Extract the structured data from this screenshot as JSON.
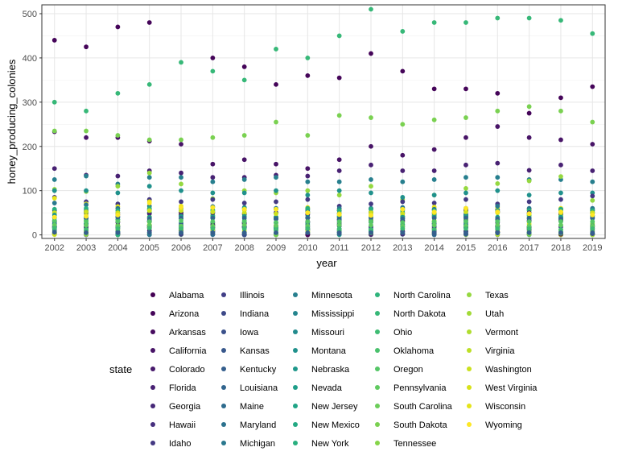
{
  "chart_data": {
    "type": "scatter",
    "title": "",
    "xlabel": "year",
    "ylabel": "honey_producing_colonies",
    "x_ticks": [
      2002,
      2003,
      2004,
      2005,
      2006,
      2007,
      2008,
      2009,
      2010,
      2011,
      2012,
      2013,
      2014,
      2015,
      2016,
      2017,
      2018,
      2019
    ],
    "y_ticks": [
      0,
      100,
      200,
      300,
      400,
      500
    ],
    "xlim": [
      2001.6,
      2019.4
    ],
    "ylim": [
      -8,
      520
    ],
    "grid": true,
    "legend_title": "state",
    "legend_position": "bottom",
    "color_scale": "viridis",
    "legend_entries": [
      {
        "name": "Alabama",
        "color": "#440154"
      },
      {
        "name": "Arizona",
        "color": "#450559"
      },
      {
        "name": "Arkansas",
        "color": "#470C5F"
      },
      {
        "name": "California",
        "color": "#481467"
      },
      {
        "name": "Colorado",
        "color": "#481A6C"
      },
      {
        "name": "Florida",
        "color": "#482173"
      },
      {
        "name": "Georgia",
        "color": "#472878"
      },
      {
        "name": "Hawaii",
        "color": "#462F7E"
      },
      {
        "name": "Idaho",
        "color": "#443983"
      },
      {
        "name": "Illinois",
        "color": "#413E86"
      },
      {
        "name": "Indiana",
        "color": "#3E4A89"
      },
      {
        "name": "Iowa",
        "color": "#3B518B"
      },
      {
        "name": "Kansas",
        "color": "#38588C"
      },
      {
        "name": "Kentucky",
        "color": "#355F8D"
      },
      {
        "name": "Louisiana",
        "color": "#32658E"
      },
      {
        "name": "Maine",
        "color": "#2F6C8E"
      },
      {
        "name": "Maryland",
        "color": "#2C728E"
      },
      {
        "name": "Michigan",
        "color": "#2A788E"
      },
      {
        "name": "Minnesota",
        "color": "#277F8E"
      },
      {
        "name": "Mississippi",
        "color": "#25858E"
      },
      {
        "name": "Missouri",
        "color": "#228B8D"
      },
      {
        "name": "Montana",
        "color": "#20918C"
      },
      {
        "name": "Nebraska",
        "color": "#1F988B"
      },
      {
        "name": "Nevada",
        "color": "#1E9E89"
      },
      {
        "name": "New Jersey",
        "color": "#20A486"
      },
      {
        "name": "New Mexico",
        "color": "#23A983"
      },
      {
        "name": "New York",
        "color": "#29AF7F"
      },
      {
        "name": "North Carolina",
        "color": "#2FB47C"
      },
      {
        "name": "North Dakota",
        "color": "#37B878"
      },
      {
        "name": "Ohio",
        "color": "#3FBC73"
      },
      {
        "name": "Oklahoma",
        "color": "#4AC16D"
      },
      {
        "name": "Oregon",
        "color": "#55C667"
      },
      {
        "name": "Pennsylvania",
        "color": "#60CA60"
      },
      {
        "name": "South Carolina",
        "color": "#6CCD5A"
      },
      {
        "name": "South Dakota",
        "color": "#7AD151"
      },
      {
        "name": "Tennessee",
        "color": "#86D549"
      },
      {
        "name": "Texas",
        "color": "#95D840"
      },
      {
        "name": "Utah",
        "color": "#A2DA37"
      },
      {
        "name": "Vermont",
        "color": "#B0DD2F"
      },
      {
        "name": "Virginia",
        "color": "#BDDF26"
      },
      {
        "name": "Washington",
        "color": "#CBE11E"
      },
      {
        "name": "West Virginia",
        "color": "#D8E219"
      },
      {
        "name": "Wisconsin",
        "color": "#E5E419"
      },
      {
        "name": "Wyoming",
        "color": "#FDE725"
      }
    ],
    "series": [
      {
        "name": "Arizona",
        "values": [
          440,
          425,
          470,
          480,
          null,
          400,
          380,
          340,
          360,
          355,
          410,
          370,
          330,
          330,
          320,
          275,
          310,
          335
        ]
      },
      {
        "name": "California",
        "values": [
          233,
          220,
          220,
          212,
          205,
          160,
          170,
          160,
          150,
          170,
          200,
          180,
          193,
          220,
          245,
          220,
          215,
          205
        ]
      },
      {
        "name": "North Dakota",
        "values": [
          300,
          280,
          320,
          340,
          390,
          370,
          350,
          420,
          400,
          450,
          510,
          460,
          480,
          480,
          490,
          490,
          485,
          455
        ]
      },
      {
        "name": "South Dakota",
        "values": [
          235,
          235,
          225,
          215,
          215,
          220,
          225,
          255,
          225,
          270,
          265,
          250,
          260,
          265,
          280,
          290,
          280,
          255
        ]
      },
      {
        "name": "Florida",
        "values": [
          150,
          135,
          133,
          145,
          140,
          130,
          130,
          135,
          133,
          145,
          158,
          145,
          145,
          158,
          162,
          146,
          158,
          145
        ]
      },
      {
        "name": "Minnesota",
        "values": [
          125,
          133,
          115,
          130,
          130,
          120,
          125,
          130,
          120,
          120,
          125,
          120,
          125,
          130,
          130,
          125,
          125,
          120
        ]
      },
      {
        "name": "Texas",
        "values": [
          103,
          98,
          110,
          140,
          115,
          82,
          100,
          95,
          100,
          90,
          110,
          80,
          90,
          105,
          116,
          122,
          132,
          78
        ]
      },
      {
        "name": "Montana",
        "values": [
          100,
          100,
          95,
          110,
          100,
          95,
          95,
          100,
          90,
          100,
          95,
          85,
          90,
          95,
          100,
          90,
          95,
          95
        ]
      },
      {
        "name": "Idaho",
        "values": [
          85,
          75,
          70,
          80,
          75,
          80,
          72,
          75,
          80,
          65,
          70,
          75,
          72,
          80,
          70,
          75,
          80,
          88
        ]
      },
      {
        "name": "Wisconsin",
        "values": [
          83,
          70,
          64,
          75,
          65,
          62,
          60,
          58,
          62,
          57,
          52,
          60,
          63,
          56,
          62,
          58,
          60,
          55
        ]
      },
      {
        "name": "Michigan",
        "values": [
          72,
          68,
          60,
          65,
          60,
          64,
          62,
          60,
          58,
          60,
          60,
          62,
          58,
          60,
          65,
          60,
          58,
          60
        ]
      },
      {
        "name": "New York",
        "values": [
          58,
          60,
          55,
          60,
          55,
          55,
          60,
          58,
          60,
          55,
          58,
          55,
          55,
          55,
          55,
          55,
          58,
          55
        ]
      },
      {
        "name": "Georgia",
        "values": [
          50,
          52,
          50,
          48,
          50,
          50,
          48,
          50,
          50,
          48,
          50,
          48,
          50,
          55,
          52,
          50,
          50,
          50
        ]
      },
      {
        "name": "Washington",
        "values": [
          50,
          52,
          50,
          55,
          55,
          52,
          50,
          48,
          50,
          48,
          50,
          48,
          50,
          52,
          50,
          48,
          50,
          50
        ]
      },
      {
        "name": "Nebraska",
        "values": [
          45,
          42,
          40,
          40,
          42,
          40,
          42,
          38,
          40,
          40,
          40,
          40,
          40,
          42,
          40,
          38,
          40,
          40
        ]
      },
      {
        "name": "Louisiana",
        "values": [
          40,
          38,
          40,
          36,
          38,
          38,
          38,
          36,
          38,
          36,
          38,
          36,
          38,
          38,
          36,
          38,
          36,
          38
        ]
      },
      {
        "name": "Oregon",
        "values": [
          32,
          30,
          30,
          30,
          32,
          30,
          30,
          28,
          30,
          30,
          30,
          28,
          30,
          30,
          30,
          30,
          30,
          30
        ]
      },
      {
        "name": "Illinois",
        "values": [
          20,
          18,
          18,
          20,
          20,
          18,
          18,
          20,
          18,
          20,
          18,
          20,
          18,
          18,
          20,
          18,
          18,
          18
        ]
      },
      {
        "name": "Pennsylvania",
        "values": [
          22,
          22,
          20,
          22,
          20,
          20,
          22,
          20,
          20,
          22,
          22,
          20,
          22,
          20,
          22,
          20,
          22,
          20
        ]
      },
      {
        "name": "Ohio",
        "values": [
          15,
          12,
          14,
          15,
          14,
          14,
          14,
          12,
          14,
          14,
          12,
          14,
          12,
          14,
          14,
          14,
          12,
          14
        ]
      },
      {
        "name": "Kentucky",
        "values": [
          6,
          5,
          5,
          6,
          5,
          5,
          5,
          5,
          5,
          5,
          5,
          5,
          5,
          5,
          5,
          5,
          5,
          5
        ]
      },
      {
        "name": "Wyoming",
        "values": [
          40,
          42,
          45,
          72,
          62,
          62,
          58,
          58,
          50,
          46,
          44,
          58,
          52,
          60,
          52,
          48,
          52,
          45
        ]
      }
    ],
    "note_on_points": "Each year also contains many additional dark/teal/green points clustered between 0 and 100 for the remaining states."
  }
}
